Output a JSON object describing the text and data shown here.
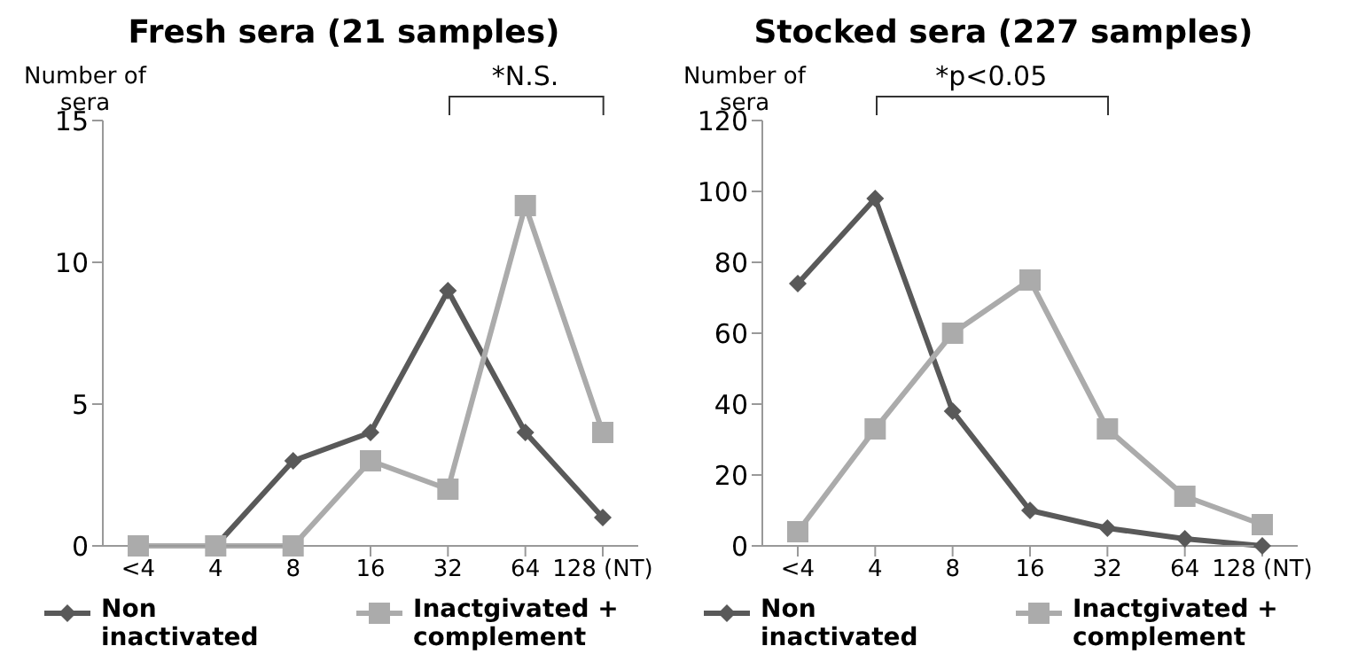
{
  "chart_data": [
    {
      "type": "line",
      "title": "Fresh sera (21 samples)",
      "ylabel": "Number of sera",
      "categories": [
        "<4",
        "4",
        "8",
        "16",
        "32",
        "64",
        "128 (NT)"
      ],
      "ylim": [
        0,
        15
      ],
      "yticks": [
        0,
        5,
        10,
        15
      ],
      "grid": false,
      "legend": "bottom",
      "annotations": [
        "*N.S."
      ],
      "series": [
        {
          "name": "Non inactivated",
          "color": "#595959",
          "marker": "diamond",
          "values": [
            0,
            0,
            3,
            4,
            9,
            4,
            1
          ]
        },
        {
          "name": "Inactgivated + complement",
          "color": "#ababab",
          "marker": "square",
          "values": [
            0,
            0,
            0,
            3,
            2,
            12,
            4
          ]
        }
      ]
    },
    {
      "type": "line",
      "title": "Stocked sera (227 samples)",
      "ylabel": "Number of sera",
      "categories": [
        "<4",
        "4",
        "8",
        "16",
        "32",
        "64",
        "128 (NT)"
      ],
      "ylim": [
        0,
        120
      ],
      "yticks": [
        0,
        20,
        40,
        60,
        80,
        100,
        120
      ],
      "grid": false,
      "legend": "bottom",
      "annotations": [
        "*p<0.05"
      ],
      "series": [
        {
          "name": "Non inactivated",
          "color": "#595959",
          "marker": "diamond",
          "values": [
            74,
            98,
            38,
            10,
            5,
            2,
            0
          ]
        },
        {
          "name": "Inactgivated + complement",
          "color": "#ababab",
          "marker": "square",
          "values": [
            4,
            33,
            60,
            75,
            33,
            14,
            6
          ]
        }
      ]
    }
  ]
}
